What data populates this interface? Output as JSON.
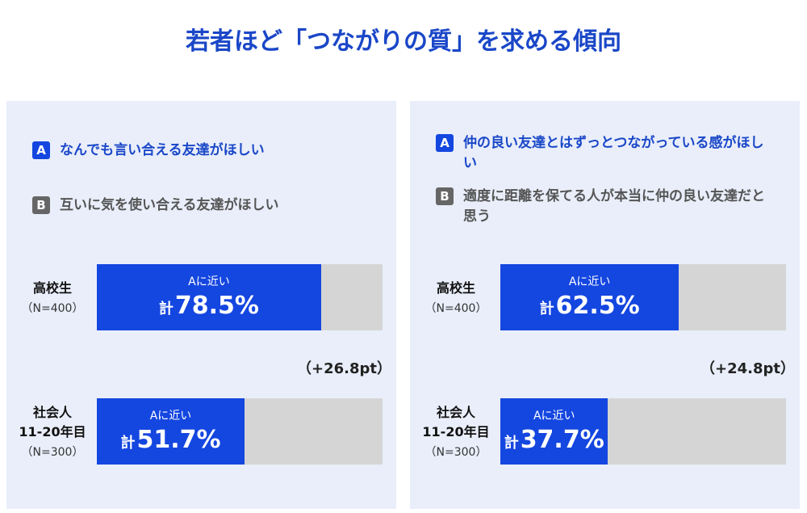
{
  "title": "若者ほど「つながりの質」を求める傾向",
  "chart_data": [
    {
      "type": "bar",
      "options": [
        {
          "badge": "A",
          "text": "なんでも言い合える友達がほしい"
        },
        {
          "badge": "B",
          "text": "互いに気を使い合える友達がほしい"
        }
      ],
      "categories": [
        "高校生",
        "社会人\n11-20年目"
      ],
      "sample_labels": [
        "（N=400）",
        "（N=300）"
      ],
      "series": [
        {
          "name": "Aに近い",
          "color": "#1446e0",
          "values": [
            78.5,
            51.7
          ],
          "value_labels": [
            "78.5%",
            "51.7%"
          ]
        }
      ],
      "total_prefix": "計",
      "annotation": "（+26.8pt）",
      "xlim": [
        0,
        100
      ]
    },
    {
      "type": "bar",
      "options": [
        {
          "badge": "A",
          "text": "仲の良い友達とはずっとつながっている感がほしい"
        },
        {
          "badge": "B",
          "text": "適度に距離を保てる人が本当に仲の良い友達だと思う"
        }
      ],
      "categories": [
        "高校生",
        "社会人\n11-20年目"
      ],
      "sample_labels": [
        "（N=400）",
        "（N=300）"
      ],
      "series": [
        {
          "name": "Aに近い",
          "color": "#1446e0",
          "values": [
            62.5,
            37.7
          ],
          "value_labels": [
            "62.5%",
            "37.7%"
          ]
        }
      ],
      "total_prefix": "計",
      "annotation": "（+24.8pt）",
      "xlim": [
        0,
        100
      ]
    }
  ]
}
